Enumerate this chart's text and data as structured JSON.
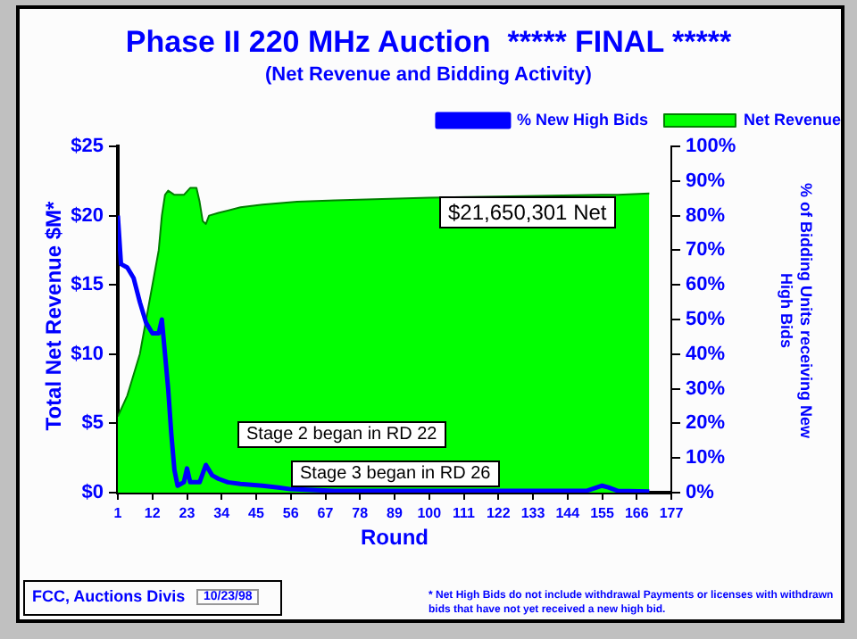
{
  "chart_data": {
    "type": "area",
    "title": "Phase II 220 MHz Auction  ***** FINAL *****",
    "subtitle": "(Net Revenue and Bidding Activity)",
    "xlabel": "Round",
    "ylabel": "Total Net Revenue $M*",
    "y2label": "% of Bidding Units receiving New High Bids",
    "xlim": [
      1,
      177
    ],
    "xticks": [
      1,
      12,
      23,
      34,
      45,
      56,
      67,
      78,
      89,
      100,
      111,
      122,
      133,
      144,
      155,
      166,
      177
    ],
    "ylim": [
      0,
      25
    ],
    "yticks": [
      {
        "value": 0,
        "label": "$0"
      },
      {
        "value": 5,
        "label": "$5"
      },
      {
        "value": 10,
        "label": "$10"
      },
      {
        "value": 15,
        "label": "$15"
      },
      {
        "value": 20,
        "label": "$20"
      },
      {
        "value": 25,
        "label": "$25"
      }
    ],
    "y2lim": [
      0,
      100
    ],
    "y2ticks": [
      {
        "value": 0,
        "label": "0%"
      },
      {
        "value": 10,
        "label": "10%"
      },
      {
        "value": 20,
        "label": "20%"
      },
      {
        "value": 30,
        "label": "30%"
      },
      {
        "value": 40,
        "label": "40%"
      },
      {
        "value": 50,
        "label": "50%"
      },
      {
        "value": 60,
        "label": "60%"
      },
      {
        "value": 70,
        "label": "70%"
      },
      {
        "value": 80,
        "label": "80%"
      },
      {
        "value": 90,
        "label": "90%"
      },
      {
        "value": 100,
        "label": "100%"
      }
    ],
    "series": [
      {
        "name": "Net Revenue",
        "type": "area",
        "color": "#00ff00",
        "x": [
          1,
          2,
          4,
          6,
          8,
          10,
          12,
          14,
          15,
          16,
          17,
          19,
          22,
          24,
          26,
          27,
          28,
          29,
          30,
          33,
          40,
          47,
          58,
          70,
          100,
          130,
          155,
          160,
          170
        ],
        "values": [
          5.5,
          6,
          7,
          8.5,
          10,
          12.5,
          15,
          17.5,
          20,
          21.5,
          21.8,
          21.5,
          21.5,
          22,
          22,
          21,
          19.6,
          19.4,
          20,
          20.2,
          20.6,
          20.8,
          21,
          21.1,
          21.3,
          21.4,
          21.5,
          21.5,
          21.6
        ]
      },
      {
        "name": "% New High Bids",
        "type": "line",
        "axis": "y2",
        "color": "#0000ff",
        "x": [
          1,
          2,
          4,
          6,
          8,
          10,
          12,
          14,
          15,
          16,
          17,
          18,
          19,
          20,
          22,
          23,
          24,
          27,
          29,
          31,
          33,
          36,
          40,
          47,
          52,
          56,
          70,
          150,
          155,
          157,
          160,
          170
        ],
        "values": [
          80,
          66,
          65,
          62,
          55,
          49,
          46,
          46,
          50,
          40,
          30,
          17,
          6.5,
          2,
          3,
          7,
          3,
          3,
          8,
          5,
          4,
          3,
          2.5,
          2,
          1.5,
          1,
          0.5,
          0.5,
          2,
          1.5,
          0.5,
          0.3
        ]
      }
    ],
    "annotations": [
      "$21,650,301 Net",
      "Stage 2 began in RD 22",
      "Stage 3 began in RD 26",
      "FCC, Auctions Divis",
      "10/23/98",
      "* Net High Bids do not include withdrawal Payments or licenses with withdrawn bids that have not yet received a new high bid."
    ],
    "legend": "top right",
    "grid": false,
    "marker": "none"
  }
}
